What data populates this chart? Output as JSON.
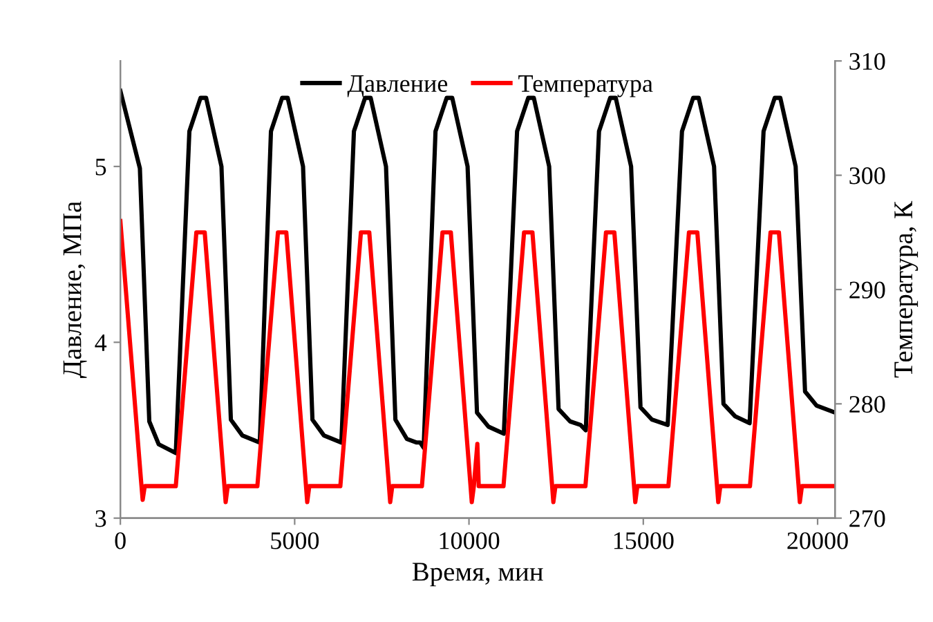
{
  "chart_data": {
    "type": "line",
    "xlabel": "Время, мин",
    "ylabel": "Давление, МПа",
    "y2label": "Температура, К",
    "xlim": [
      0,
      20500
    ],
    "xticks": [
      0,
      5000,
      10000,
      15000,
      20000
    ],
    "ylim": [
      3,
      5.6
    ],
    "yticks": [
      3,
      4,
      5
    ],
    "y2lim": [
      270,
      310
    ],
    "y2ticks": [
      270,
      280,
      290,
      300,
      310
    ],
    "legend": "top",
    "grid": false,
    "series": [
      {
        "name": "Давление",
        "color": "#000000",
        "x": [
          0,
          560,
          830,
          1100,
          1590,
          1980,
          2300,
          2460,
          2900,
          3170,
          3500,
          4000,
          4320,
          4640,
          4800,
          5240,
          5510,
          5840,
          6340,
          6700,
          7020,
          7180,
          7620,
          7890,
          8220,
          8500,
          8600,
          8700,
          9040,
          9360,
          9520,
          9960,
          10230,
          10560,
          11000,
          11380,
          11700,
          11860,
          12300,
          12570,
          12900,
          13200,
          13350,
          13730,
          14050,
          14210,
          14650,
          14920,
          15250,
          15700,
          16110,
          16430,
          16590,
          17030,
          17300,
          17630,
          18050,
          18450,
          18770,
          18930,
          19370,
          19640,
          19970,
          20500
        ],
        "values": [
          5.43,
          4.99,
          3.55,
          3.42,
          3.37,
          5.2,
          5.39,
          5.39,
          5.0,
          3.56,
          3.47,
          3.43,
          5.2,
          5.39,
          5.39,
          5.0,
          3.56,
          3.47,
          3.43,
          5.2,
          5.39,
          5.39,
          5.0,
          3.56,
          3.45,
          3.43,
          3.43,
          3.4,
          5.2,
          5.39,
          5.39,
          5.0,
          3.6,
          3.52,
          3.48,
          5.2,
          5.39,
          5.39,
          5.0,
          3.62,
          3.55,
          3.53,
          3.5,
          5.2,
          5.39,
          5.39,
          5.0,
          3.63,
          3.56,
          3.53,
          5.2,
          5.39,
          5.39,
          5.0,
          3.65,
          3.58,
          3.54,
          5.2,
          5.39,
          5.39,
          5.0,
          3.72,
          3.64,
          3.6
        ]
      },
      {
        "name": "Температура",
        "color": "#ff0000",
        "axis": "y2",
        "x": [
          0,
          590,
          640,
          700,
          1590,
          2180,
          2420,
          2980,
          3020,
          3080,
          3930,
          4520,
          4760,
          5320,
          5360,
          5420,
          6310,
          6900,
          7140,
          7700,
          7740,
          7800,
          8650,
          9240,
          9480,
          10040,
          10080,
          10140,
          10240,
          10280,
          10990,
          11580,
          11820,
          12380,
          12420,
          12480,
          13340,
          13930,
          14170,
          14730,
          14770,
          14830,
          15720,
          16310,
          16550,
          17110,
          17150,
          17210,
          18060,
          18650,
          18890,
          19450,
          19490,
          19550,
          20500
        ],
        "values": [
          296,
          273.4,
          271.6,
          272.8,
          272.8,
          295,
          295,
          273,
          271.4,
          272.8,
          272.8,
          295,
          295,
          273,
          271.4,
          272.8,
          272.8,
          295,
          295,
          273,
          271.4,
          272.8,
          272.8,
          295,
          295,
          273,
          271.4,
          272.8,
          276.5,
          272.8,
          272.8,
          295,
          295,
          273,
          271.4,
          272.8,
          272.8,
          295,
          295,
          273,
          271.4,
          272.8,
          272.8,
          295,
          295,
          273,
          271.4,
          272.8,
          272.8,
          295,
          295,
          273,
          271.4,
          272.8,
          272.8
        ]
      }
    ]
  }
}
